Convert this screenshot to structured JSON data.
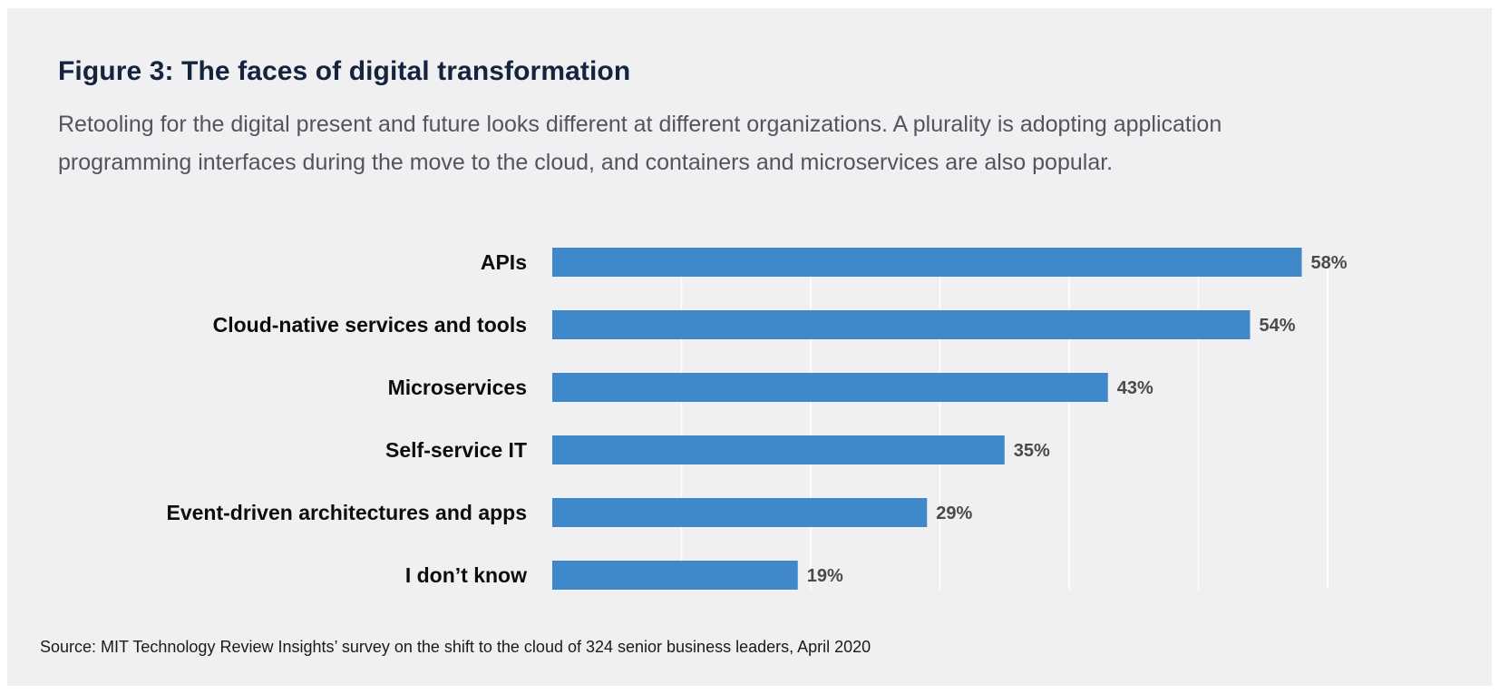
{
  "figure": {
    "title": "Figure 3: The faces of digital transformation",
    "subtitle": "Retooling for the digital present and future looks different at different organizations. A plurality is adopting application programming interfaces during the move to the cloud, and containers and microservices are also popular.",
    "source": "Source: MIT Technology Review Insights’ survey on the shift to the cloud of 324 senior business leaders, April 2020"
  },
  "chart_data": {
    "type": "bar",
    "orientation": "horizontal",
    "categories": [
      "APIs",
      "Cloud-native services and tools",
      "Microservices",
      "Self-service IT",
      "Event-driven architectures and apps",
      "I don’t know"
    ],
    "values": [
      58,
      54,
      43,
      35,
      29,
      19
    ],
    "value_labels": [
      "58%",
      "54%",
      "43%",
      "35%",
      "29%",
      "19%"
    ],
    "unit": "%",
    "xlim": [
      0,
      60
    ],
    "grid": true,
    "legend": "none",
    "colors": {
      "bar": "#3f88c9",
      "grid": "#ffffff",
      "background": "#f0f0f2"
    }
  }
}
